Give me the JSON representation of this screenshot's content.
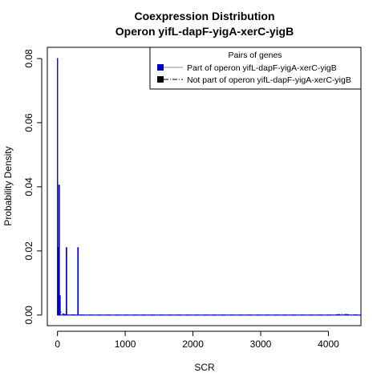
{
  "chart_data": {
    "type": "line",
    "title": "Coexpression Distribution",
    "subtitle": "Operon yifL-dapF-yigA-xerC-yigB",
    "xlabel": "SCR",
    "ylabel": "Probability Density",
    "xlim": [
      -150,
      4480
    ],
    "ylim": [
      -0.0033,
      0.0835
    ],
    "x_ticks": [
      0,
      1000,
      2000,
      3000,
      4000
    ],
    "x_tick_labels": [
      "0",
      "1000",
      "2000",
      "3000",
      "4000"
    ],
    "y_ticks": [
      0.0,
      0.02,
      0.04,
      0.06,
      0.08
    ],
    "y_tick_labels": [
      "0.00",
      "0.02",
      "0.04",
      "0.06",
      "0.08"
    ],
    "grid": false,
    "legend": {
      "title": "Pairs of genes",
      "placement": "top-right",
      "entries": [
        {
          "label": "Part of operon yifL-dapF-yigA-xerC-yigB",
          "color": "#0000cc",
          "line": "solid"
        },
        {
          "label": "Not part of operon yifL-dapF-yigA-xerC-yigB",
          "color": "#000000",
          "line": "dashdot"
        }
      ]
    },
    "series": [
      {
        "name": "Part of operon yifL-dapF-yigA-xerC-yigB",
        "color": "#0000cc",
        "x": [
          0,
          0,
          2,
          2,
          8,
          8,
          14,
          14,
          20,
          20,
          28,
          28,
          34,
          34,
          40,
          40,
          130,
          130,
          136,
          136,
          300,
          300,
          306,
          306,
          4480
        ],
        "y": [
          0,
          0.08,
          0.08,
          0,
          0,
          0.021,
          0.021,
          0,
          0,
          0.0405,
          0.0405,
          0,
          0,
          0.006,
          0.006,
          0,
          0,
          0.021,
          0.021,
          0,
          0,
          0.021,
          0.021,
          0,
          0
        ]
      },
      {
        "name": "Not part of operon yifL-dapF-yigA-xerC-yigB",
        "color": "#000000",
        "x": [
          0,
          20,
          40,
          60,
          100,
          200,
          400,
          1000,
          2000,
          3000,
          4000,
          4200,
          4480
        ],
        "y": [
          0.0,
          0.007,
          0.0015,
          0.0006,
          0.0002,
          0.0001,
          0.0,
          0.0,
          0.0,
          0.0,
          0.0,
          0.0002,
          0.0
        ]
      }
    ]
  }
}
